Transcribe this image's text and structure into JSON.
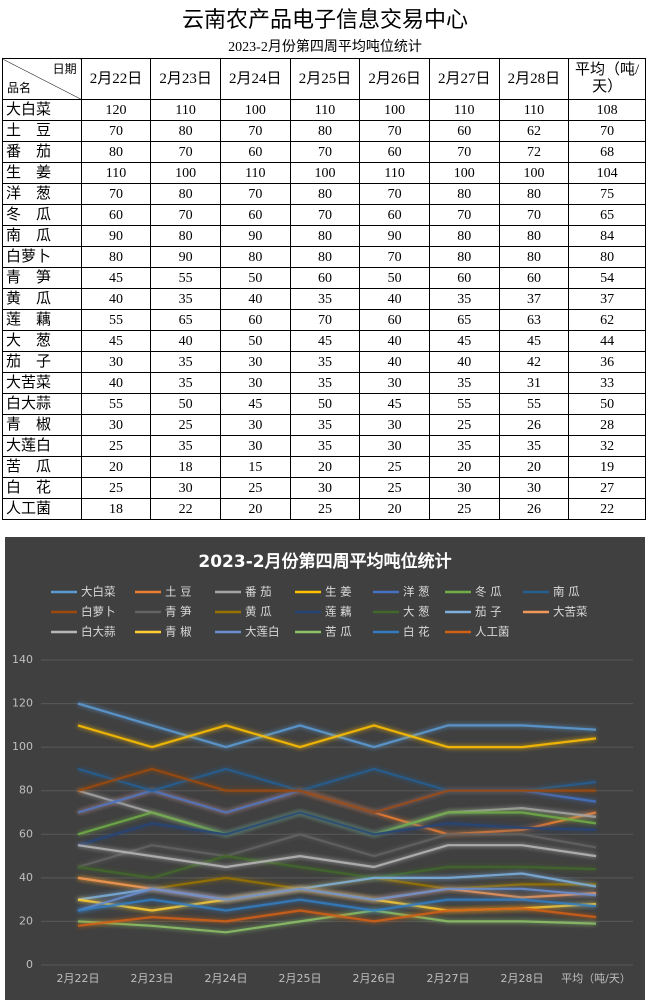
{
  "header": {
    "title": "云南农产品电子信息交易中心",
    "subtitle": "2023-2月份第四周平均吨位统计"
  },
  "table": {
    "corner_top": "日期",
    "corner_bottom": "品名",
    "columns": [
      "2月22日",
      "2月23日",
      "2月24日",
      "2月25日",
      "2月26日",
      "2月27日",
      "2月28日",
      "平均（吨/天）"
    ],
    "rows": [
      [
        "大白菜",
        120,
        110,
        100,
        110,
        100,
        110,
        110,
        108
      ],
      [
        "土　豆",
        70,
        80,
        70,
        80,
        70,
        60,
        62,
        70
      ],
      [
        "番　茄",
        80,
        70,
        60,
        70,
        60,
        70,
        72,
        68
      ],
      [
        "生　姜",
        110,
        100,
        110,
        100,
        110,
        100,
        100,
        104
      ],
      [
        "洋　葱",
        70,
        80,
        70,
        80,
        70,
        80,
        80,
        75
      ],
      [
        "冬　瓜",
        60,
        70,
        60,
        70,
        60,
        70,
        70,
        65
      ],
      [
        "南　瓜",
        90,
        80,
        90,
        80,
        90,
        80,
        80,
        84
      ],
      [
        "白萝卜",
        80,
        90,
        80,
        80,
        70,
        80,
        80,
        80
      ],
      [
        "青　笋",
        45,
        55,
        50,
        60,
        50,
        60,
        60,
        54
      ],
      [
        "黄　瓜",
        40,
        35,
        40,
        35,
        40,
        35,
        37,
        37
      ],
      [
        "莲　藕",
        55,
        65,
        60,
        70,
        60,
        65,
        63,
        62
      ],
      [
        "大　葱",
        45,
        40,
        50,
        45,
        40,
        45,
        45,
        44
      ],
      [
        "茄　子",
        30,
        35,
        30,
        35,
        40,
        40,
        42,
        36
      ],
      [
        "大苦菜",
        40,
        35,
        30,
        35,
        30,
        35,
        31,
        33
      ],
      [
        "白大蒜",
        55,
        50,
        45,
        50,
        45,
        55,
        55,
        50
      ],
      [
        "青　椒",
        30,
        25,
        30,
        35,
        30,
        25,
        26,
        28
      ],
      [
        "大莲白",
        25,
        35,
        30,
        35,
        30,
        35,
        35,
        32
      ],
      [
        "苦　瓜",
        20,
        18,
        15,
        20,
        25,
        20,
        20,
        19
      ],
      [
        "白　花",
        25,
        30,
        25,
        30,
        25,
        30,
        30,
        27
      ],
      [
        "人工菌",
        18,
        22,
        20,
        25,
        20,
        25,
        26,
        22
      ]
    ]
  },
  "chart_data": {
    "type": "line",
    "title": "2023-2月份第四周平均吨位统计",
    "categories": [
      "2月22日",
      "2月23日",
      "2月24日",
      "2月25日",
      "2月26日",
      "2月27日",
      "2月28日",
      "平均（吨/天）"
    ],
    "ylim": [
      0,
      140
    ],
    "yticks": [
      0,
      20,
      40,
      60,
      80,
      100,
      120,
      140
    ],
    "grid": true,
    "legend": "top",
    "series": [
      {
        "name": "大白菜",
        "color": "#5b9bd5",
        "values": [
          120,
          110,
          100,
          110,
          100,
          110,
          110,
          108
        ]
      },
      {
        "name": "土 豆",
        "color": "#ed7d31",
        "values": [
          70,
          80,
          70,
          80,
          70,
          60,
          62,
          70
        ]
      },
      {
        "name": "番 茄",
        "color": "#a5a5a5",
        "values": [
          80,
          70,
          60,
          70,
          60,
          70,
          72,
          68
        ]
      },
      {
        "name": "生 姜",
        "color": "#ffc000",
        "values": [
          110,
          100,
          110,
          100,
          110,
          100,
          100,
          104
        ]
      },
      {
        "name": "洋 葱",
        "color": "#4472c4",
        "values": [
          70,
          80,
          70,
          80,
          70,
          80,
          80,
          75
        ]
      },
      {
        "name": "冬 瓜",
        "color": "#70ad47",
        "values": [
          60,
          70,
          60,
          70,
          60,
          70,
          70,
          65
        ]
      },
      {
        "name": "南 瓜",
        "color": "#255e91",
        "values": [
          90,
          80,
          90,
          80,
          90,
          80,
          80,
          84
        ]
      },
      {
        "name": "白萝卜",
        "color": "#9e480e",
        "values": [
          80,
          90,
          80,
          80,
          70,
          80,
          80,
          80
        ]
      },
      {
        "name": "青 笋",
        "color": "#636363",
        "values": [
          45,
          55,
          50,
          60,
          50,
          60,
          60,
          54
        ]
      },
      {
        "name": "黄 瓜",
        "color": "#997300",
        "values": [
          40,
          35,
          40,
          35,
          40,
          35,
          37,
          37
        ]
      },
      {
        "name": "莲 藕",
        "color": "#264478",
        "values": [
          55,
          65,
          60,
          70,
          60,
          65,
          63,
          62
        ]
      },
      {
        "name": "大 葱",
        "color": "#43682b",
        "values": [
          45,
          40,
          50,
          45,
          40,
          45,
          45,
          44
        ]
      },
      {
        "name": "茄 子",
        "color": "#7cafdd",
        "values": [
          30,
          35,
          30,
          35,
          40,
          40,
          42,
          36
        ]
      },
      {
        "name": "大苦菜",
        "color": "#f1975a",
        "values": [
          40,
          35,
          30,
          35,
          30,
          35,
          31,
          33
        ]
      },
      {
        "name": "白大蒜",
        "color": "#b7b7b7",
        "values": [
          55,
          50,
          45,
          50,
          45,
          55,
          55,
          50
        ]
      },
      {
        "name": "青 椒",
        "color": "#ffcd33",
        "values": [
          30,
          25,
          30,
          35,
          30,
          25,
          26,
          28
        ]
      },
      {
        "name": "大莲白",
        "color": "#698ed0",
        "values": [
          25,
          35,
          30,
          35,
          30,
          35,
          35,
          32
        ]
      },
      {
        "name": "苦 瓜",
        "color": "#8cc168",
        "values": [
          20,
          18,
          15,
          20,
          25,
          20,
          20,
          19
        ]
      },
      {
        "name": "白 花",
        "color": "#327dc2",
        "values": [
          25,
          30,
          25,
          30,
          25,
          30,
          30,
          27
        ]
      },
      {
        "name": "人工菌",
        "color": "#d26012",
        "values": [
          18,
          22,
          20,
          25,
          20,
          25,
          26,
          22
        ]
      }
    ]
  }
}
